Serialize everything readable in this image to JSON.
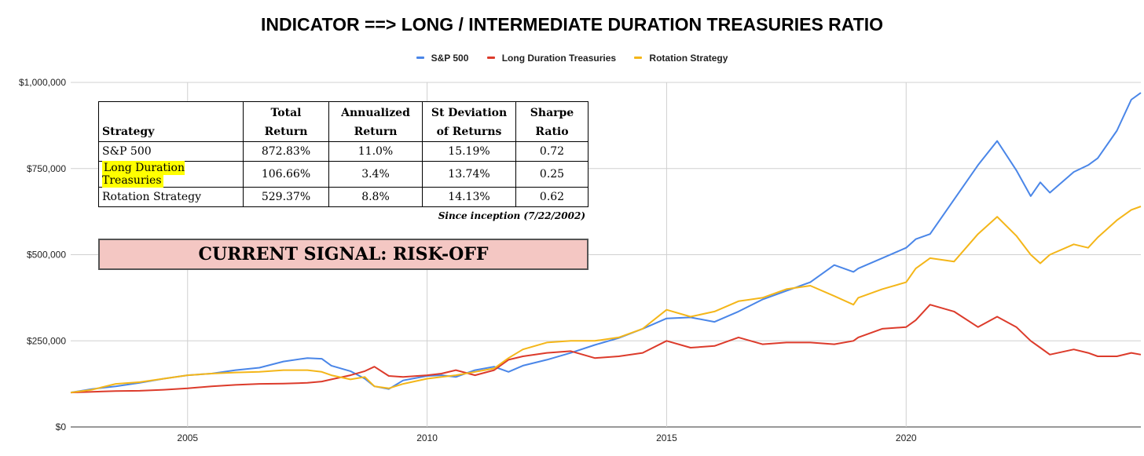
{
  "title": "INDICATOR ==> LONG / INTERMEDIATE DURATION TREASURIES RATIO",
  "legend": [
    {
      "label": "S&P 500",
      "color": "#4a86e8"
    },
    {
      "label": "Long Duration Treasuries",
      "color": "#dc3b2b"
    },
    {
      "label": "Rotation Strategy",
      "color": "#f4b619"
    }
  ],
  "chart_data": {
    "type": "line",
    "title": "INDICATOR ==> LONG / INTERMEDIATE DURATION TREASURIES RATIO",
    "xlabel": "",
    "ylabel": "",
    "xlim": [
      2002.56,
      2024.9
    ],
    "ylim": [
      0,
      1000000
    ],
    "y_ticks": [
      0,
      250000,
      500000,
      750000,
      1000000
    ],
    "y_tick_labels": [
      "$0",
      "$250,000",
      "$500,000",
      "$750,000",
      "$1,000,000"
    ],
    "x_ticks": [
      2005,
      2010,
      2015,
      2020
    ],
    "x_tick_labels": [
      "2005",
      "2010",
      "2015",
      "2020"
    ],
    "legend_position": "top",
    "grid": true,
    "x": [
      2002.56,
      2003.0,
      2003.5,
      2004.0,
      2004.5,
      2005.0,
      2005.5,
      2006.0,
      2006.5,
      2007.0,
      2007.5,
      2007.8,
      2008.0,
      2008.4,
      2008.7,
      2008.9,
      2009.2,
      2009.5,
      2010.0,
      2010.3,
      2010.6,
      2011.0,
      2011.4,
      2011.7,
      2012.0,
      2012.5,
      2013.0,
      2013.5,
      2014.0,
      2014.5,
      2015.0,
      2015.5,
      2016.0,
      2016.5,
      2017.0,
      2017.5,
      2018.0,
      2018.5,
      2018.9,
      2019.0,
      2019.5,
      2020.0,
      2020.2,
      2020.5,
      2021.0,
      2021.5,
      2021.9,
      2022.3,
      2022.6,
      2022.8,
      2023.0,
      2023.5,
      2023.8,
      2024.0,
      2024.4,
      2024.7,
      2024.9
    ],
    "series": [
      {
        "name": "S&P 500",
        "values": [
          100000,
          110000,
          118000,
          128000,
          140000,
          150000,
          155000,
          165000,
          172000,
          190000,
          200000,
          198000,
          178000,
          162000,
          140000,
          118000,
          110000,
          135000,
          148000,
          150000,
          145000,
          165000,
          175000,
          160000,
          178000,
          195000,
          215000,
          238000,
          258000,
          285000,
          315000,
          318000,
          305000,
          335000,
          370000,
          395000,
          420000,
          470000,
          450000,
          460000,
          490000,
          520000,
          545000,
          560000,
          660000,
          760000,
          830000,
          745000,
          670000,
          710000,
          680000,
          740000,
          760000,
          780000,
          860000,
          950000,
          970000
        ]
      },
      {
        "name": "Long Duration Treasuries",
        "values": [
          100000,
          102000,
          104000,
          105000,
          108000,
          112000,
          118000,
          122000,
          125000,
          126000,
          128000,
          132000,
          138000,
          150000,
          162000,
          175000,
          148000,
          145000,
          150000,
          155000,
          165000,
          150000,
          165000,
          195000,
          205000,
          215000,
          220000,
          200000,
          205000,
          215000,
          250000,
          230000,
          235000,
          260000,
          240000,
          245000,
          245000,
          240000,
          250000,
          260000,
          285000,
          290000,
          310000,
          355000,
          335000,
          290000,
          320000,
          290000,
          250000,
          230000,
          210000,
          225000,
          215000,
          205000,
          205000,
          215000,
          210000
        ]
      },
      {
        "name": "Rotation Strategy",
        "values": [
          100000,
          108000,
          125000,
          130000,
          140000,
          150000,
          155000,
          158000,
          160000,
          165000,
          165000,
          160000,
          150000,
          138000,
          145000,
          118000,
          112000,
          125000,
          140000,
          145000,
          150000,
          160000,
          170000,
          200000,
          225000,
          245000,
          250000,
          250000,
          260000,
          285000,
          340000,
          320000,
          335000,
          365000,
          375000,
          400000,
          410000,
          380000,
          355000,
          375000,
          400000,
          420000,
          460000,
          490000,
          480000,
          560000,
          610000,
          555000,
          500000,
          475000,
          500000,
          530000,
          520000,
          550000,
          600000,
          630000,
          640000
        ]
      }
    ]
  },
  "stats_table": {
    "headers": [
      {
        "line1": "",
        "line2": "Strategy"
      },
      {
        "line1": "Total",
        "line2": "Return"
      },
      {
        "line1": "Annualized",
        "line2": "Return"
      },
      {
        "line1": "St Deviation",
        "line2": "of Returns"
      },
      {
        "line1": "Sharpe",
        "line2": "Ratio"
      }
    ],
    "rows": [
      {
        "name": "S&P 500",
        "total_return": "872.83%",
        "annualized_return": "11.0%",
        "st_deviation": "15.19%",
        "sharpe": "0.72"
      },
      {
        "name": "Long Duration Treasuries",
        "total_return": "106.66%",
        "annualized_return": "3.4%",
        "st_deviation": "13.74%",
        "sharpe": "0.25"
      },
      {
        "name": "Rotation Strategy",
        "total_return": "529.37%",
        "annualized_return": "8.8%",
        "st_deviation": "14.13%",
        "sharpe": "0.62"
      }
    ],
    "highlight_color": "#ffff00",
    "note": "Since inception (7/22/2002)"
  },
  "signal": {
    "text": "CURRENT SIGNAL: RISK-OFF",
    "background": "#f4c7c3"
  }
}
